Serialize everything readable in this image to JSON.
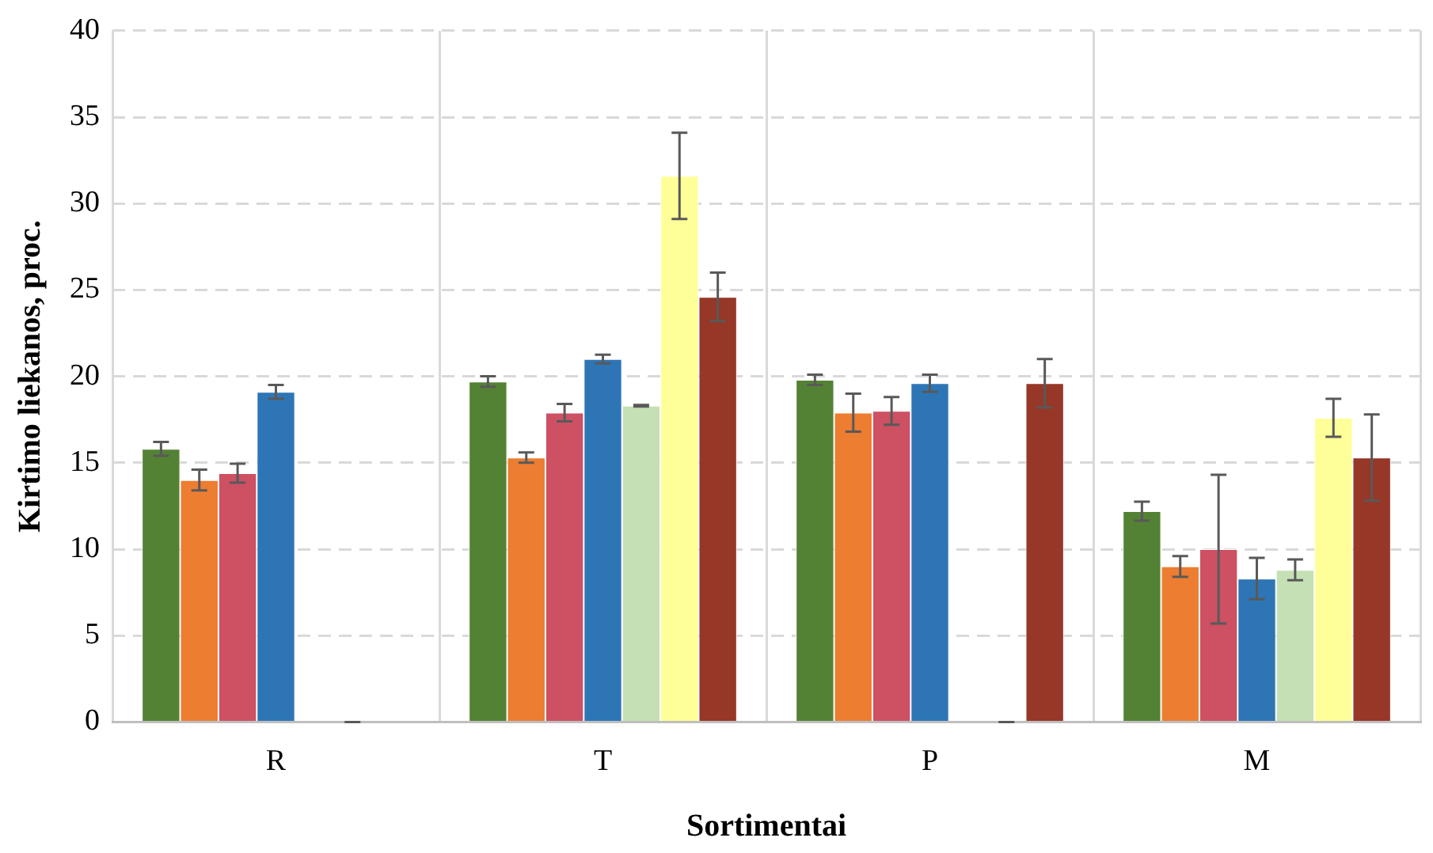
{
  "chart_data": {
    "type": "bar",
    "xlabel": "Sortimentai",
    "ylabel": "Kirtimo liekanos, proc.",
    "categories": [
      "R",
      "T",
      "P",
      "M"
    ],
    "ylim": [
      0,
      40
    ],
    "yticks": [
      0,
      5,
      10,
      15,
      20,
      25,
      30,
      35,
      40
    ],
    "grid": true,
    "legend": false,
    "series": [
      {
        "color": "#548235",
        "values": [
          15.8,
          19.7,
          19.8,
          12.2
        ],
        "errors": [
          0.4,
          0.3,
          0.3,
          0.55
        ]
      },
      {
        "color": "#ed7d31",
        "values": [
          14.0,
          15.3,
          17.9,
          9.0
        ],
        "errors": [
          0.6,
          0.3,
          1.1,
          0.6
        ]
      },
      {
        "color": "#cd5063",
        "values": [
          14.4,
          17.9,
          18.0,
          10.0
        ],
        "errors": [
          0.55,
          0.5,
          0.8,
          4.3
        ]
      },
      {
        "color": "#2e75b6",
        "values": [
          19.1,
          21.0,
          19.6,
          8.3
        ],
        "errors": [
          0.4,
          0.25,
          0.5,
          1.2
        ]
      },
      {
        "color": "#c5e0b4",
        "values": [
          null,
          18.3,
          null,
          8.8
        ],
        "errors": [
          null,
          0.05,
          null,
          0.6
        ]
      },
      {
        "color": "#ffff99",
        "values": [
          0,
          31.6,
          0,
          17.6
        ],
        "errors": [
          0,
          2.5,
          0,
          1.1
        ]
      },
      {
        "color": "#963728",
        "values": [
          null,
          24.6,
          19.6,
          15.3
        ],
        "errors": [
          null,
          1.4,
          1.4,
          2.5
        ]
      }
    ]
  }
}
